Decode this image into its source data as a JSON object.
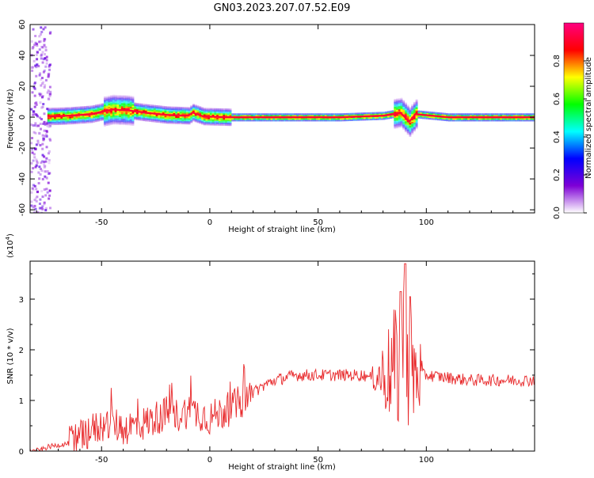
{
  "title": "GN03.2023.207.07.52.E09",
  "chart_data": [
    {
      "type": "heatmap",
      "xlabel": "Height of straight line (km)",
      "ylabel": "Frequency (Hz)",
      "xlim": [
        -83,
        150
      ],
      "ylim": [
        -62,
        60
      ],
      "xticks": [
        -50,
        0,
        50,
        100
      ],
      "yticks": [
        -60,
        -40,
        -20,
        0,
        20,
        40,
        60
      ],
      "colorbar": {
        "label": "Normalized spectral amplitude",
        "range": [
          0,
          1
        ],
        "ticks": [
          0.0,
          0.2,
          0.4,
          0.6,
          0.8
        ],
        "colormap": [
          "#ffffff",
          "#7e00d6",
          "#0000ff",
          "#00ffff",
          "#00ff00",
          "#ffff00",
          "#ff0000",
          "#ff0080"
        ]
      },
      "ridge": {
        "note_start_km": -75,
        "points": [
          {
            "x": -75,
            "y": 0.5
          },
          {
            "x": -65,
            "y": 1.0
          },
          {
            "x": -55,
            "y": 2.0
          },
          {
            "x": -45,
            "y": 5.0
          },
          {
            "x": -38,
            "y": 4.5
          },
          {
            "x": -30,
            "y": 3.0
          },
          {
            "x": -20,
            "y": 1.5
          },
          {
            "x": -10,
            "y": 1.0
          },
          {
            "x": -8,
            "y": 3.0
          },
          {
            "x": -3,
            "y": 0.5
          },
          {
            "x": 10,
            "y": 0.0
          },
          {
            "x": 60,
            "y": 0.0
          },
          {
            "x": 80,
            "y": 1.0
          },
          {
            "x": 88,
            "y": 3.0
          },
          {
            "x": 92,
            "y": -3.0
          },
          {
            "x": 95,
            "y": 2.0
          },
          {
            "x": 110,
            "y": 0.0
          },
          {
            "x": 150,
            "y": 0.0
          }
        ]
      }
    },
    {
      "type": "line",
      "xlabel": "Height of straight line (km)",
      "ylabel": "SNR (10 * v/v)",
      "ymultiplier": "(x10",
      "ymultiplier_exp": "4",
      "ymultiplier_close": ")",
      "xlim": [
        -83,
        150
      ],
      "ylim": [
        0,
        3.75
      ],
      "xticks": [
        -50,
        0,
        50,
        100
      ],
      "yticks": [
        0,
        1,
        2,
        3
      ],
      "series": [
        {
          "color": "#e8292b",
          "x": [
            -83,
            -78,
            -75,
            -70,
            -65,
            -60,
            -55,
            -50,
            -45,
            -40,
            -35,
            -30,
            -25,
            -20,
            -15,
            -10,
            -5,
            0,
            5,
            10,
            15,
            20,
            25,
            30,
            35,
            40,
            45,
            50,
            55,
            60,
            65,
            70,
            75,
            80,
            85,
            88,
            90,
            92,
            95,
            100,
            110,
            120,
            130,
            140,
            150
          ],
          "y": [
            0.0,
            0.02,
            0.08,
            0.12,
            0.15,
            0.25,
            0.4,
            0.5,
            0.55,
            0.45,
            0.5,
            0.55,
            0.65,
            0.75,
            0.7,
            0.8,
            0.75,
            0.65,
            0.75,
            0.85,
            1.0,
            1.15,
            1.3,
            1.4,
            1.45,
            1.5,
            1.5,
            1.5,
            1.5,
            1.5,
            1.5,
            1.5,
            1.45,
            1.5,
            1.6,
            1.7,
            2.0,
            1.6,
            1.5,
            1.5,
            1.45,
            1.4,
            1.4,
            1.4,
            1.4
          ]
        }
      ]
    }
  ]
}
